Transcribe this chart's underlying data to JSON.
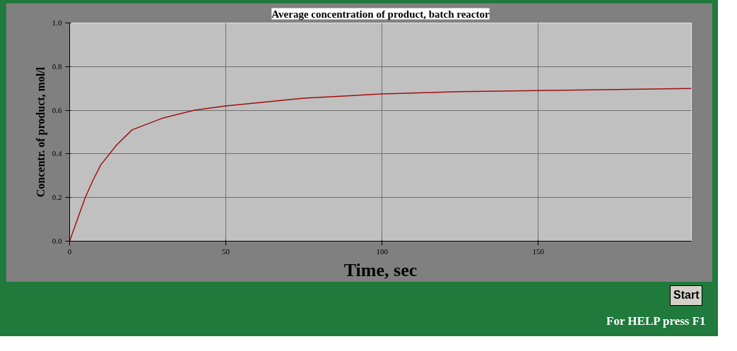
{
  "chart_data": {
    "type": "line",
    "title": "Average concentration of product, batch reactor",
    "xlabel": "Time, sec",
    "ylabel": "Concentr. of product, mol/l",
    "x": [
      0,
      2.5,
      5,
      7.5,
      10,
      15,
      20,
      30,
      40,
      50,
      75,
      100,
      125,
      150,
      175,
      199
    ],
    "series": [
      {
        "color": "#a01010",
        "values": [
          0,
          0.1,
          0.2,
          0.28,
          0.35,
          0.44,
          0.51,
          0.565,
          0.6,
          0.62,
          0.655,
          0.675,
          0.685,
          0.69,
          0.695,
          0.7
        ]
      }
    ],
    "xlim": [
      0,
      199
    ],
    "xticks": [
      0,
      50,
      100,
      150
    ],
    "ylim": [
      0,
      1
    ],
    "yticks": [
      {
        "value": 0,
        "label": "0.0"
      },
      0.2,
      0.4,
      0.6,
      0.8,
      {
        "value": 1,
        "label": "1.0"
      }
    ],
    "grid": true,
    "marker": "none",
    "line_style": "solid",
    "annotations": [
      "Start",
      "For HELP press F1"
    ]
  }
}
